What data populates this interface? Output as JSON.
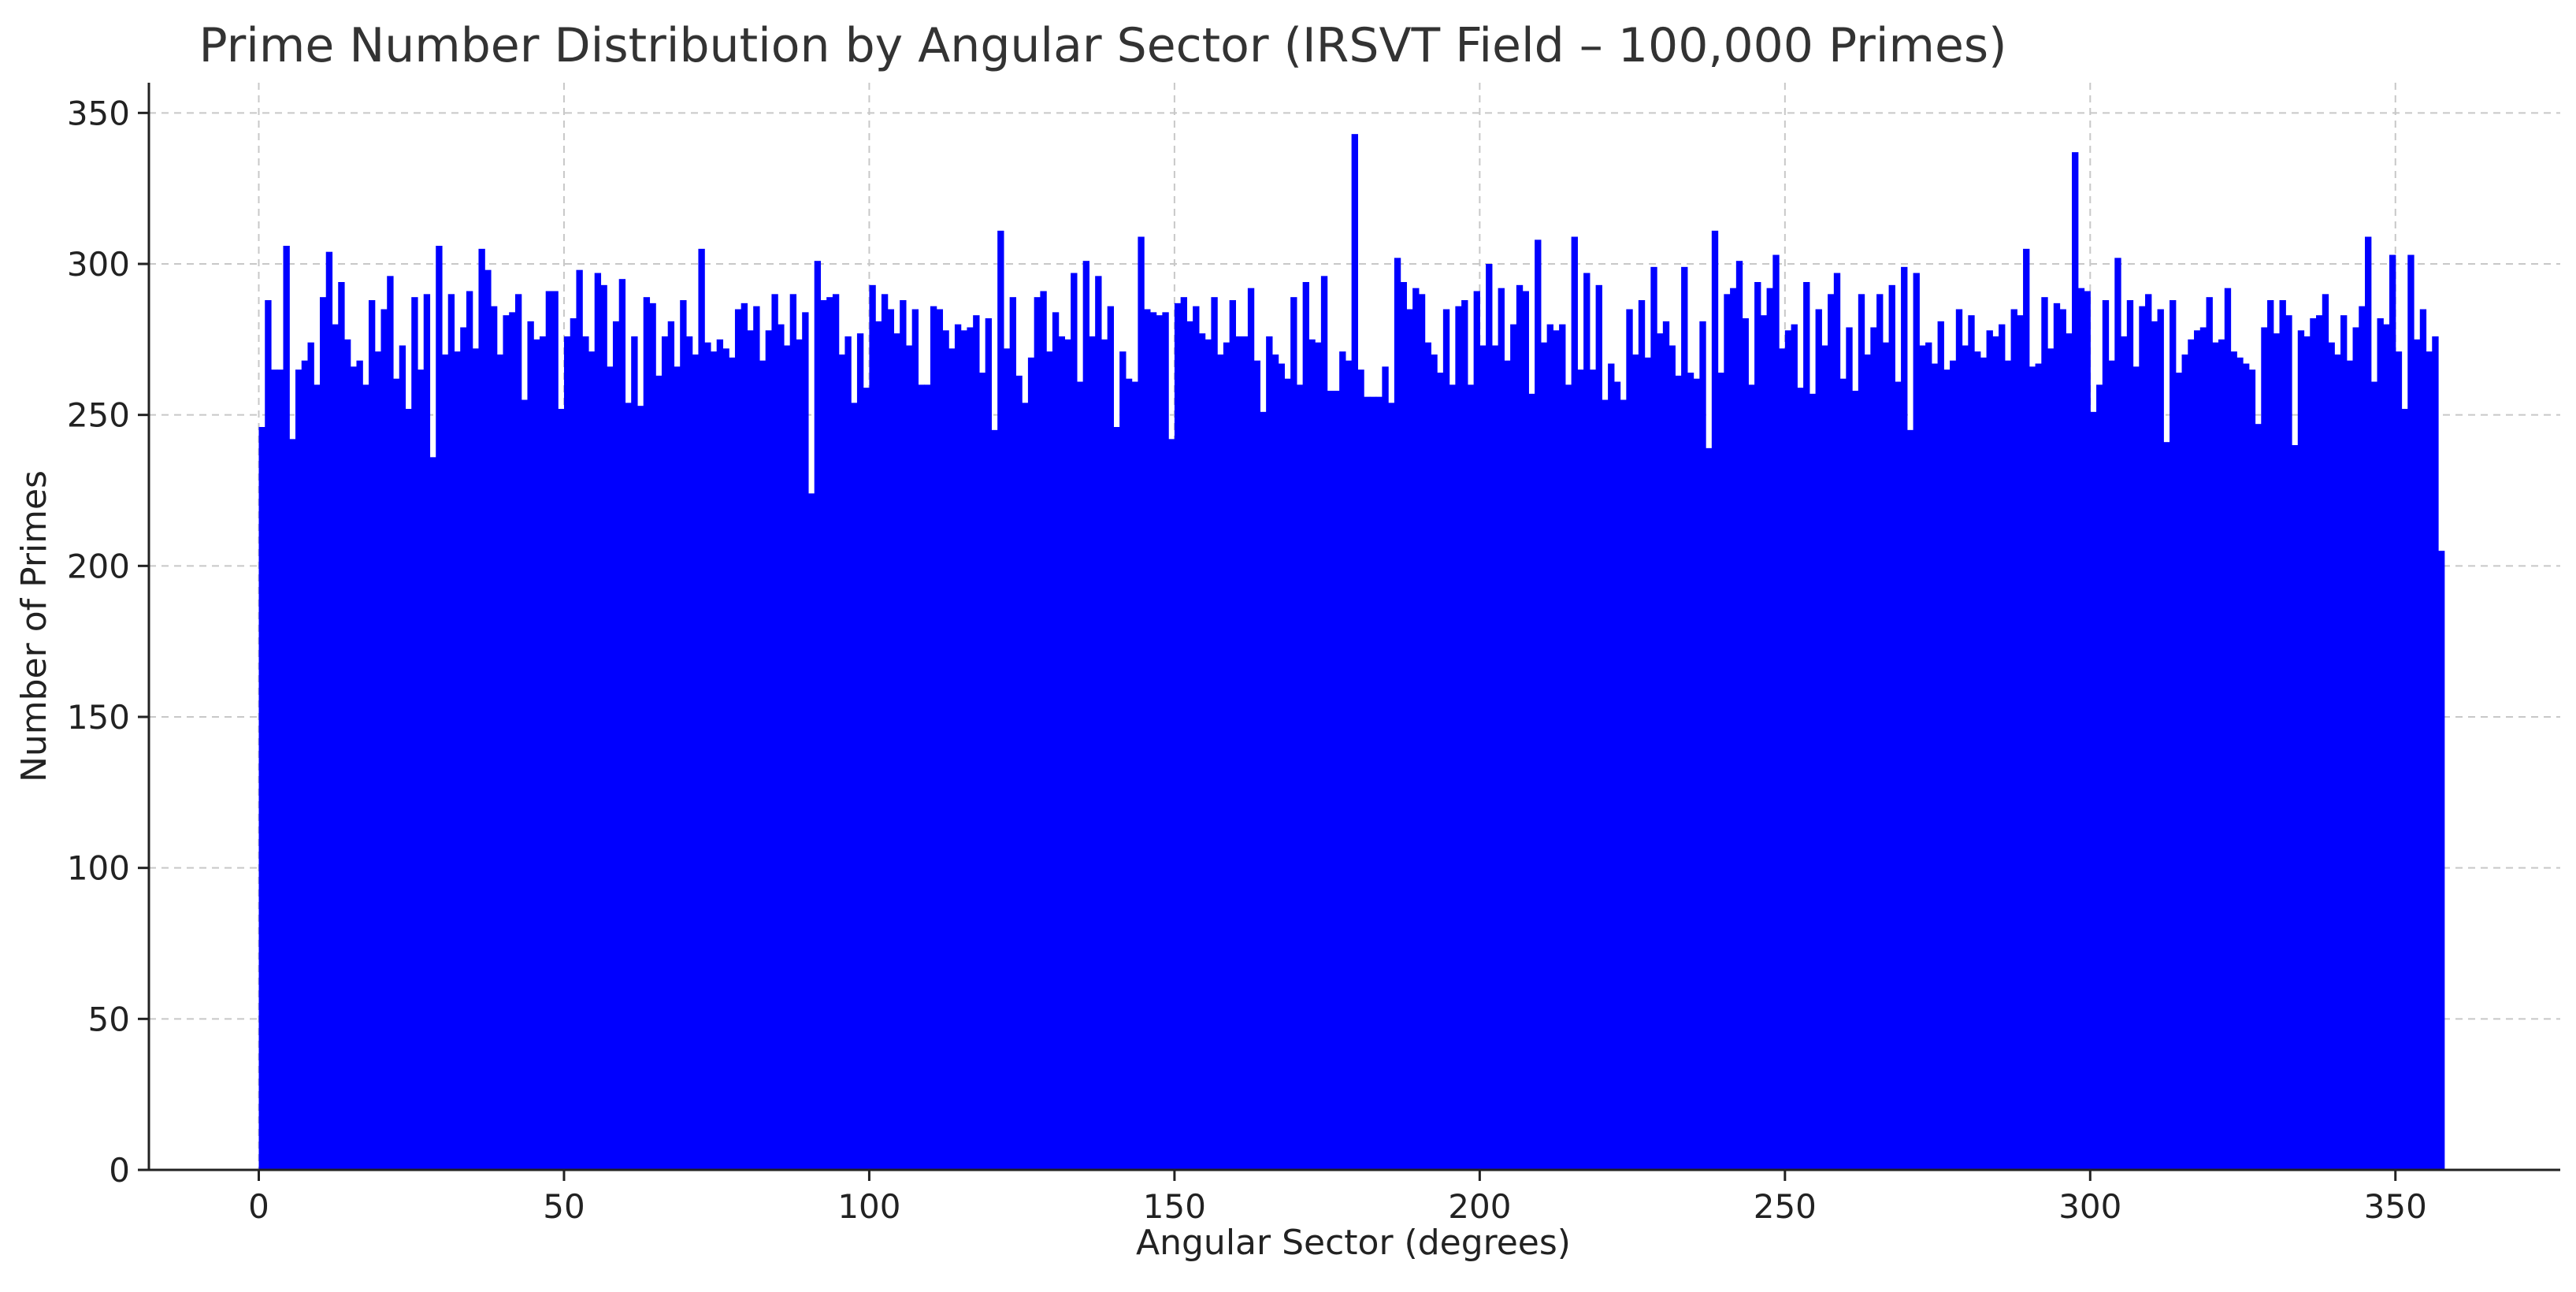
{
  "chart_data": {
    "type": "bar",
    "title": "Prime Number Distribution by Angular Sector (IRSVT Field – 100,000 Primes)",
    "xlabel": "Angular Sector (degrees)",
    "ylabel": "Number of Primes",
    "xlim": [
      -18,
      377
    ],
    "ylim": [
      0,
      360
    ],
    "xticks": [
      0,
      50,
      100,
      150,
      200,
      250,
      300,
      350
    ],
    "yticks": [
      0,
      50,
      100,
      150,
      200,
      250,
      300,
      350
    ],
    "grid": true,
    "bar_color": "#0000ff",
    "bin_start": 0,
    "bin_width": 1,
    "values": [
      246,
      288,
      265,
      265,
      306,
      242,
      265,
      268,
      274,
      260,
      289,
      304,
      280,
      294,
      275,
      266,
      268,
      260,
      288,
      271,
      285,
      296,
      262,
      273,
      252,
      289,
      265,
      290,
      236,
      306,
      270,
      290,
      271,
      279,
      291,
      272,
      305,
      298,
      286,
      270,
      283,
      284,
      290,
      255,
      281,
      275,
      276,
      291,
      291,
      252,
      276,
      282,
      298,
      276,
      271,
      297,
      293,
      266,
      281,
      295,
      254,
      276,
      253,
      289,
      287,
      263,
      276,
      281,
      266,
      288,
      276,
      270,
      305,
      274,
      271,
      275,
      272,
      269,
      285,
      287,
      278,
      286,
      268,
      278,
      290,
      280,
      273,
      290,
      275,
      284,
      224,
      301,
      288,
      289,
      290,
      270,
      276,
      254,
      277,
      259,
      293,
      281,
      290,
      285,
      277,
      288,
      273,
      285,
      260,
      260,
      286,
      285,
      278,
      272,
      280,
      278,
      279,
      283,
      264,
      282,
      245,
      311,
      272,
      289,
      263,
      254,
      269,
      289,
      291,
      271,
      284,
      276,
      275,
      297,
      261,
      301,
      276,
      296,
      275,
      286,
      246,
      271,
      262,
      261,
      309,
      285,
      284,
      283,
      284,
      242,
      287,
      289,
      281,
      286,
      277,
      275,
      289,
      270,
      274,
      288,
      276,
      276,
      292,
      268,
      251,
      276,
      270,
      267,
      262,
      289,
      260,
      294,
      275,
      274,
      296,
      258,
      258,
      271,
      268,
      343,
      265,
      256,
      256,
      256,
      266,
      254,
      302,
      294,
      285,
      292,
      290,
      274,
      270,
      264,
      285,
      260,
      286,
      288,
      260,
      291,
      273,
      300,
      273,
      292,
      268,
      280,
      293,
      291,
      257,
      308,
      274,
      280,
      278,
      280,
      260,
      309,
      265,
      297,
      265,
      293,
      255,
      267,
      261,
      255,
      285,
      270,
      288,
      269,
      299,
      277,
      281,
      273,
      263,
      299,
      264,
      262,
      281,
      239,
      311,
      264,
      290,
      292,
      301,
      282,
      260,
      294,
      283,
      292,
      303,
      272,
      278,
      280,
      259,
      294,
      257,
      285,
      273,
      290,
      297,
      262,
      279,
      258,
      290,
      270,
      279,
      290,
      274,
      293,
      261,
      299,
      245,
      297,
      273,
      274,
      267,
      281,
      265,
      268,
      285,
      273,
      283,
      271,
      269,
      278,
      276,
      280,
      268,
      285,
      283,
      305,
      266,
      267,
      289,
      272,
      287,
      285,
      277,
      337,
      292,
      291,
      251,
      260,
      288,
      268,
      302,
      276,
      288,
      266,
      286,
      290,
      281,
      285,
      241,
      288,
      264,
      270,
      275,
      278,
      279,
      289,
      274,
      275,
      292,
      271,
      269,
      267,
      265,
      247,
      279,
      288,
      277,
      288,
      283,
      240,
      278,
      276,
      282,
      283,
      290,
      274,
      270,
      283,
      268,
      279,
      286,
      309,
      261,
      282,
      280,
      303,
      271,
      252,
      303,
      275,
      285,
      271,
      276,
      205
    ]
  }
}
